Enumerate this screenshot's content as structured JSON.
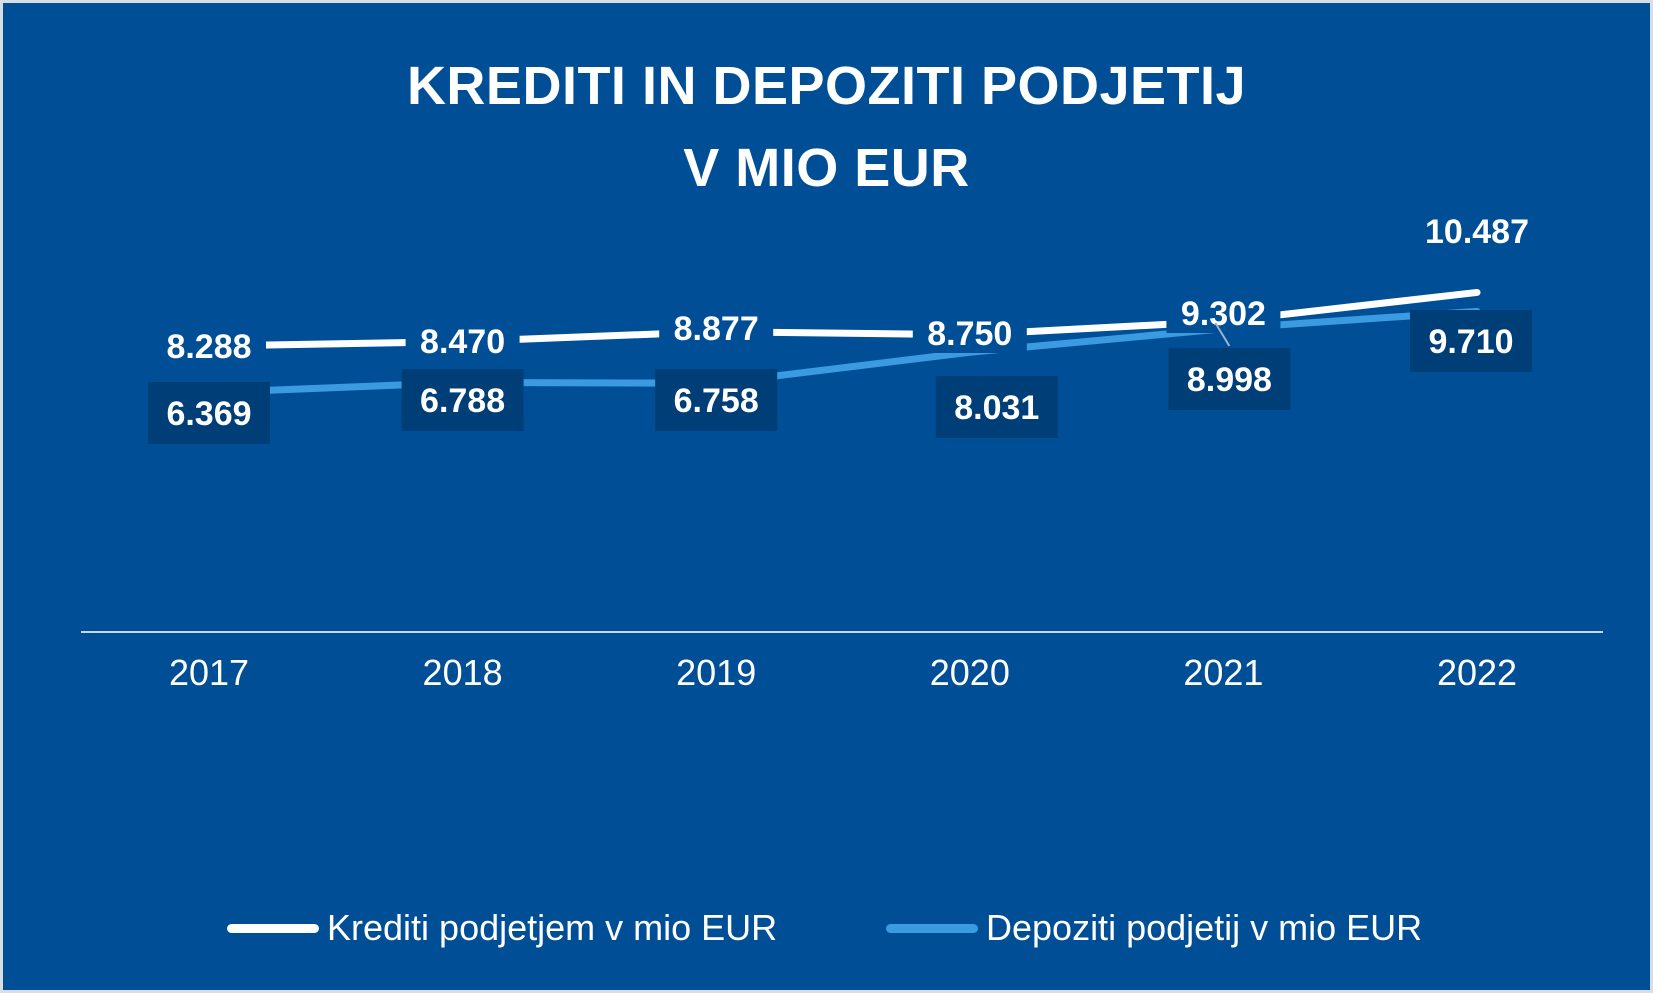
{
  "title_lines": [
    "KREDITI IN DEPOZITI PODJETIJ",
    "V MIO EUR"
  ],
  "colors": {
    "background": "#004f96",
    "label_box": "#003e78",
    "axis": "#c9d6e6",
    "text": "#ffffff"
  },
  "chart_data": {
    "type": "line",
    "title": "KREDITI IN DEPOZITI PODJETIJ V MIO EUR",
    "categories": [
      "2017",
      "2018",
      "2019",
      "2020",
      "2021",
      "2022"
    ],
    "series": [
      {
        "name": "Krediti podjetjem v mio EUR",
        "color": "#ffffff",
        "values": [
          8288,
          8470,
          8877,
          8750,
          9302,
          10487
        ],
        "labels": [
          "8.288",
          "8.470",
          "8.877",
          "8.750",
          "9.302",
          "10.487"
        ]
      },
      {
        "name": "Depoziti podjetij v mio EUR",
        "color": "#3a9be0",
        "values": [
          6369,
          6788,
          6758,
          8031,
          8998,
          9710
        ],
        "labels": [
          "6.369",
          "6.788",
          "6.758",
          "8.031",
          "8.998",
          "9.710"
        ]
      }
    ],
    "xlabel": "",
    "ylabel": "",
    "y_axis_shown": false,
    "grid": false,
    "legend_position": "bottom"
  }
}
